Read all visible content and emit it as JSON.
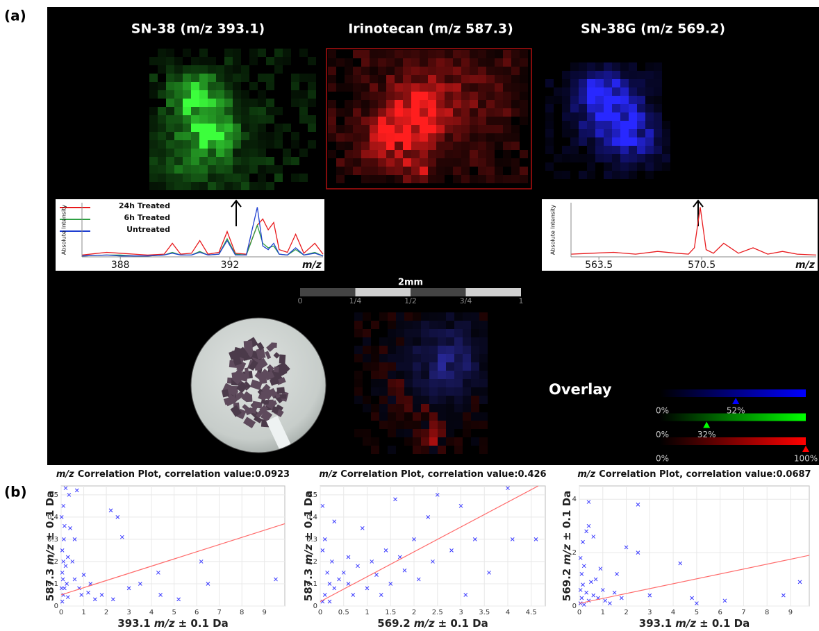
{
  "panel_a": {
    "label": "(a)",
    "images": [
      "SN-38 (m/z 393.1)",
      "Irinotecan (m/z 587.3)",
      "SN-38G (m/z 569.2)"
    ],
    "scale_bar": {
      "label": "2mm",
      "ticks": [
        "0",
        "1/4",
        "1/2",
        "3/4",
        "1"
      ]
    },
    "overlay": {
      "label": "Overlay",
      "bars": [
        {
          "color": "#0000ff",
          "min_label": "0%",
          "marker": {
            "value": 52,
            "label": "52%"
          }
        },
        {
          "color": "#00ff00",
          "min_label": "0%",
          "marker": {
            "value": 32,
            "label": "32%"
          }
        },
        {
          "color": "#ff0000",
          "min_label": "0%",
          "marker": {
            "value": 100,
            "label": "100%"
          }
        }
      ]
    }
  },
  "panel_b": {
    "label": "(b)"
  },
  "chart_data": [
    {
      "type": "line",
      "xlabel": "m/z",
      "ylabel": "Absolute Intensity",
      "xlim": [
        386.6,
        395.4
      ],
      "ylim": [
        0,
        0.6
      ],
      "xticks": [
        388,
        392
      ],
      "x": [
        386.6,
        387.5,
        388.0,
        388.5,
        389.0,
        389.6,
        389.9,
        390.2,
        390.6,
        390.9,
        391.2,
        391.6,
        391.9,
        392.2,
        392.6,
        393.0,
        393.2,
        393.4,
        393.6,
        393.8,
        394.1,
        394.4,
        394.7,
        395.1,
        395.4
      ],
      "series": [
        {
          "name": "24h Treated",
          "color": "#e8191c",
          "values": [
            0.02,
            0.05,
            0.04,
            0.03,
            0.02,
            0.03,
            0.15,
            0.03,
            0.04,
            0.18,
            0.03,
            0.05,
            0.28,
            0.04,
            0.03,
            0.35,
            0.42,
            0.3,
            0.38,
            0.08,
            0.05,
            0.25,
            0.04,
            0.15,
            0.03
          ]
        },
        {
          "name": "6h Treated",
          "color": "#2ea043",
          "values": [
            0.01,
            0.02,
            0.02,
            0.01,
            0.01,
            0.02,
            0.05,
            0.02,
            0.02,
            0.06,
            0.02,
            0.03,
            0.2,
            0.03,
            0.02,
            0.35,
            0.15,
            0.1,
            0.12,
            0.03,
            0.02,
            0.08,
            0.02,
            0.05,
            0.01
          ]
        },
        {
          "name": "Untreated",
          "color": "#1f3fd1",
          "values": [
            0.01,
            0.02,
            0.01,
            0.01,
            0.01,
            0.02,
            0.04,
            0.02,
            0.02,
            0.05,
            0.02,
            0.03,
            0.18,
            0.02,
            0.02,
            0.55,
            0.12,
            0.08,
            0.15,
            0.03,
            0.02,
            0.1,
            0.02,
            0.04,
            0.01
          ]
        }
      ]
    },
    {
      "type": "line",
      "xlabel": "m/z",
      "ylabel": "Absolute Intensity",
      "xlim": [
        561.6,
        578.3
      ],
      "ylim": [
        0,
        0.6
      ],
      "xticks": [
        563.5,
        570.5
      ],
      "x": [
        561.6,
        563.0,
        564.5,
        566.0,
        567.5,
        568.8,
        569.6,
        570.0,
        570.4,
        570.8,
        571.3,
        572.0,
        573.0,
        574.0,
        575.0,
        576.0,
        577.0,
        578.3
      ],
      "series": [
        {
          "color": "#e8191c",
          "values": [
            0.03,
            0.04,
            0.05,
            0.03,
            0.06,
            0.04,
            0.03,
            0.1,
            0.55,
            0.08,
            0.04,
            0.15,
            0.04,
            0.1,
            0.03,
            0.06,
            0.03,
            0.02
          ]
        }
      ]
    },
    {
      "type": "scatter",
      "title_prefix": "m/z",
      "title": "Correlation Plot, correlation value:0.0923",
      "xlabel": [
        "393.1",
        "m/z",
        "± 0.1 Da"
      ],
      "ylabel": [
        "587.3",
        "m/z",
        "± 0.1 Da"
      ],
      "xlim": [
        0,
        9.9
      ],
      "ylim": [
        0,
        0.54
      ],
      "xticks": [
        0,
        1,
        2,
        3,
        4,
        5,
        6,
        7,
        8,
        9
      ],
      "yticks": [
        0,
        0.1,
        0.2,
        0.3,
        0.4,
        0.5
      ],
      "grid": true,
      "series": [
        {
          "color": "#3a3aff",
          "x": [
            0.05,
            0.1,
            0.08,
            0.15,
            0.2,
            0.05,
            0.12,
            0.25,
            0.3,
            0.02,
            0.1,
            0.35,
            0.7,
            0.2,
            0.5,
            0.6,
            0.8,
            1.0,
            1.2,
            0.4,
            0.15,
            1.3,
            1.5,
            1.8,
            2.2,
            2.5,
            2.7,
            2.3,
            3.0,
            3.5,
            4.3,
            4.4,
            5.2,
            6.2,
            6.5,
            9.5,
            0.05,
            0.1,
            0.3,
            0.6,
            0.9,
            0.02
          ],
          "values": [
            0.02,
            0.05,
            0.12,
            0.08,
            0.18,
            0.25,
            0.3,
            0.1,
            0.04,
            0.4,
            0.45,
            0.5,
            0.52,
            0.53,
            0.2,
            0.12,
            0.08,
            0.14,
            0.06,
            0.35,
            0.36,
            0.1,
            0.03,
            0.05,
            0.43,
            0.4,
            0.31,
            0.03,
            0.08,
            0.1,
            0.15,
            0.05,
            0.03,
            0.2,
            0.1,
            0.12,
            0.15,
            0.2,
            0.22,
            0.3,
            0.05,
            0.08
          ]
        },
        {
          "color": "#ff6b6b",
          "x": [
            0,
            9.9
          ],
          "values": [
            0.05,
            0.37
          ]
        }
      ]
    },
    {
      "type": "scatter",
      "title_prefix": "m/z",
      "title": "Correlation Plot, correlation value:0.426",
      "xlabel": [
        "569.2",
        "m/z",
        "± 0.1 Da"
      ],
      "ylabel": [
        "587.3",
        "m/z",
        "± 0.1 Da"
      ],
      "xlim": [
        0,
        4.8
      ],
      "ylim": [
        0,
        0.54
      ],
      "xticks": [
        0,
        0.5,
        1,
        1.5,
        2,
        2.5,
        3,
        3.5,
        4,
        4.5
      ],
      "yticks": [
        0,
        0.1,
        0.2,
        0.3,
        0.4,
        0.5
      ],
      "grid": true,
      "series": [
        {
          "color": "#3a3aff",
          "x": [
            0.05,
            0.1,
            0.2,
            0.15,
            0.3,
            0.4,
            0.05,
            0.1,
            0.25,
            0.5,
            0.6,
            0.8,
            0.7,
            1.0,
            1.1,
            1.2,
            1.4,
            1.5,
            1.7,
            1.8,
            2.0,
            2.1,
            2.3,
            2.4,
            2.5,
            2.8,
            3.0,
            3.1,
            3.3,
            3.6,
            4.0,
            4.1,
            4.6,
            0.3,
            0.05,
            1.6,
            0.9,
            0.2,
            0.6,
            1.3
          ],
          "values": [
            0.02,
            0.05,
            0.1,
            0.15,
            0.08,
            0.12,
            0.25,
            0.3,
            0.2,
            0.15,
            0.1,
            0.18,
            0.05,
            0.08,
            0.2,
            0.14,
            0.25,
            0.1,
            0.22,
            0.16,
            0.3,
            0.12,
            0.4,
            0.2,
            0.5,
            0.25,
            0.45,
            0.05,
            0.3,
            0.15,
            0.53,
            0.3,
            0.3,
            0.38,
            0.45,
            0.48,
            0.35,
            0.02,
            0.22,
            0.05
          ]
        },
        {
          "color": "#ff6b6b",
          "x": [
            0,
            4.65
          ],
          "values": [
            0.02,
            0.54
          ]
        }
      ]
    },
    {
      "type": "scatter",
      "title_prefix": "m/z",
      "title": "Correlation Plot, correlation value:0.0687",
      "xlabel": [
        "393.1",
        "m/z",
        "± 0.1 Da"
      ],
      "ylabel": [
        "569.2",
        "m/z",
        "± 0.1 Da"
      ],
      "xlim": [
        0,
        9.8
      ],
      "ylim": [
        0,
        4.5
      ],
      "xticks": [
        0,
        1,
        2,
        3,
        4,
        5,
        6,
        7,
        8,
        9
      ],
      "yticks": [
        0,
        2,
        4
      ],
      "grid": true,
      "series": [
        {
          "color": "#3a3aff",
          "x": [
            0.05,
            0.1,
            0.05,
            0.15,
            0.1,
            0.2,
            0.05,
            0.3,
            0.4,
            0.5,
            0.3,
            0.4,
            0.4,
            0.6,
            0.7,
            0.8,
            1.0,
            1.1,
            1.3,
            1.5,
            1.8,
            2.0,
            2.5,
            2.5,
            3.0,
            4.3,
            4.8,
            5.0,
            6.2,
            8.7,
            9.4,
            0.2,
            0.6,
            0.9,
            1.6,
            0.15
          ],
          "values": [
            0.1,
            0.3,
            0.6,
            0.8,
            1.2,
            1.5,
            1.8,
            0.5,
            0.2,
            0.9,
            2.8,
            3.0,
            3.9,
            2.6,
            1.0,
            0.3,
            0.6,
            0.2,
            0.1,
            0.5,
            0.3,
            2.2,
            2.0,
            3.8,
            0.4,
            1.6,
            0.3,
            0.1,
            0.2,
            0.4,
            0.9,
            0.05,
            0.4,
            1.4,
            1.2,
            2.4
          ]
        },
        {
          "color": "#ff6b6b",
          "x": [
            0,
            9.8
          ],
          "values": [
            0.1,
            1.9
          ]
        }
      ]
    }
  ]
}
